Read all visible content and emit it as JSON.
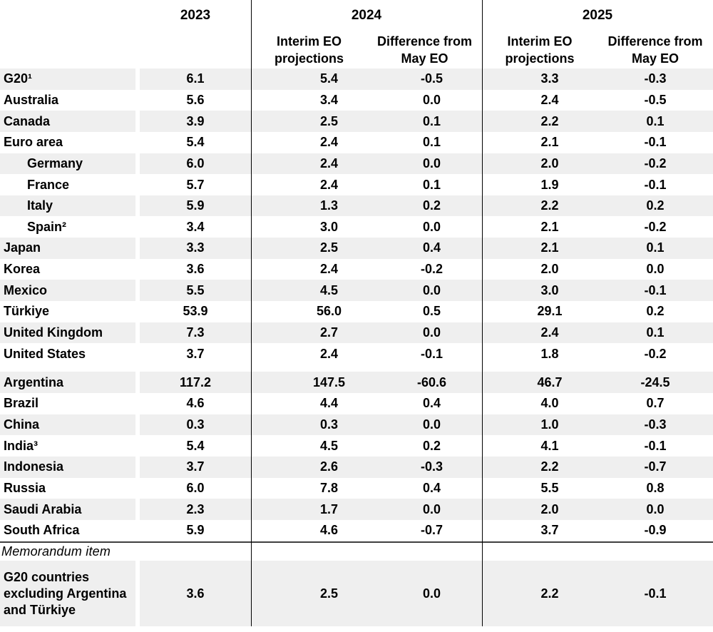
{
  "table": {
    "header": {
      "y2023": "2023",
      "y2024": "2024",
      "y2025": "2025",
      "interim_label": "Interim EO projections",
      "difference_label": "Difference from May EO"
    },
    "advanced_rows": [
      {
        "label": "G20¹",
        "indent": false,
        "values": [
          "6.1",
          "5.4",
          "-0.5",
          "3.3",
          "-0.3"
        ]
      },
      {
        "label": "Australia",
        "indent": false,
        "values": [
          "5.6",
          "3.4",
          "0.0",
          "2.4",
          "-0.5"
        ]
      },
      {
        "label": "Canada",
        "indent": false,
        "values": [
          "3.9",
          "2.5",
          "0.1",
          "2.2",
          "0.1"
        ]
      },
      {
        "label": "Euro area",
        "indent": false,
        "values": [
          "5.4",
          "2.4",
          "0.1",
          "2.1",
          "-0.1"
        ]
      },
      {
        "label": "Germany",
        "indent": true,
        "values": [
          "6.0",
          "2.4",
          "0.0",
          "2.0",
          "-0.2"
        ]
      },
      {
        "label": "France",
        "indent": true,
        "values": [
          "5.7",
          "2.4",
          "0.1",
          "1.9",
          "-0.1"
        ]
      },
      {
        "label": "Italy",
        "indent": true,
        "values": [
          "5.9",
          "1.3",
          "0.2",
          "2.2",
          "0.2"
        ]
      },
      {
        "label": "Spain²",
        "indent": true,
        "values": [
          "3.4",
          "3.0",
          "0.0",
          "2.1",
          "-0.2"
        ]
      },
      {
        "label": "Japan",
        "indent": false,
        "values": [
          "3.3",
          "2.5",
          "0.4",
          "2.1",
          "0.1"
        ]
      },
      {
        "label": "Korea",
        "indent": false,
        "values": [
          "3.6",
          "2.4",
          "-0.2",
          "2.0",
          "0.0"
        ]
      },
      {
        "label": "Mexico",
        "indent": false,
        "values": [
          "5.5",
          "4.5",
          "0.0",
          "3.0",
          "-0.1"
        ]
      },
      {
        "label": "Türkiye",
        "indent": false,
        "values": [
          "53.9",
          "56.0",
          "0.5",
          "29.1",
          "0.2"
        ]
      },
      {
        "label": "United Kingdom",
        "indent": false,
        "values": [
          "7.3",
          "2.7",
          "0.0",
          "2.4",
          "0.1"
        ]
      },
      {
        "label": "United States",
        "indent": false,
        "values": [
          "3.7",
          "2.4",
          "-0.1",
          "1.8",
          "-0.2"
        ]
      }
    ],
    "emerging_rows": [
      {
        "label": "Argentina",
        "indent": false,
        "values": [
          "117.2",
          "147.5",
          "-60.6",
          "46.7",
          "-24.5"
        ]
      },
      {
        "label": "Brazil",
        "indent": false,
        "values": [
          "4.6",
          "4.4",
          "0.4",
          "4.0",
          "0.7"
        ]
      },
      {
        "label": "China",
        "indent": false,
        "values": [
          "0.3",
          "0.3",
          "0.0",
          "1.0",
          "-0.3"
        ]
      },
      {
        "label": "India³",
        "indent": false,
        "values": [
          "5.4",
          "4.5",
          "0.2",
          "4.1",
          "-0.1"
        ]
      },
      {
        "label": "Indonesia",
        "indent": false,
        "values": [
          "3.7",
          "2.6",
          "-0.3",
          "2.2",
          "-0.7"
        ]
      },
      {
        "label": "Russia",
        "indent": false,
        "values": [
          "6.0",
          "7.8",
          "0.4",
          "5.5",
          "0.8"
        ]
      },
      {
        "label": "Saudi Arabia",
        "indent": false,
        "values": [
          "2.3",
          "1.7",
          "0.0",
          "2.0",
          "0.0"
        ]
      },
      {
        "label": "South Africa",
        "indent": false,
        "values": [
          "5.9",
          "4.6",
          "-0.7",
          "3.7",
          "-0.9"
        ]
      }
    ],
    "memorandum": {
      "section_label": "Memorandum item",
      "label": "G20 countries excluding Argentina and Türkiye",
      "values": [
        "3.6",
        "2.5",
        "0.0",
        "2.2",
        "-0.1"
      ]
    }
  },
  "colors": {
    "stripe": "#efefef",
    "rule": "#000000",
    "separator": "#3f3f3f"
  }
}
